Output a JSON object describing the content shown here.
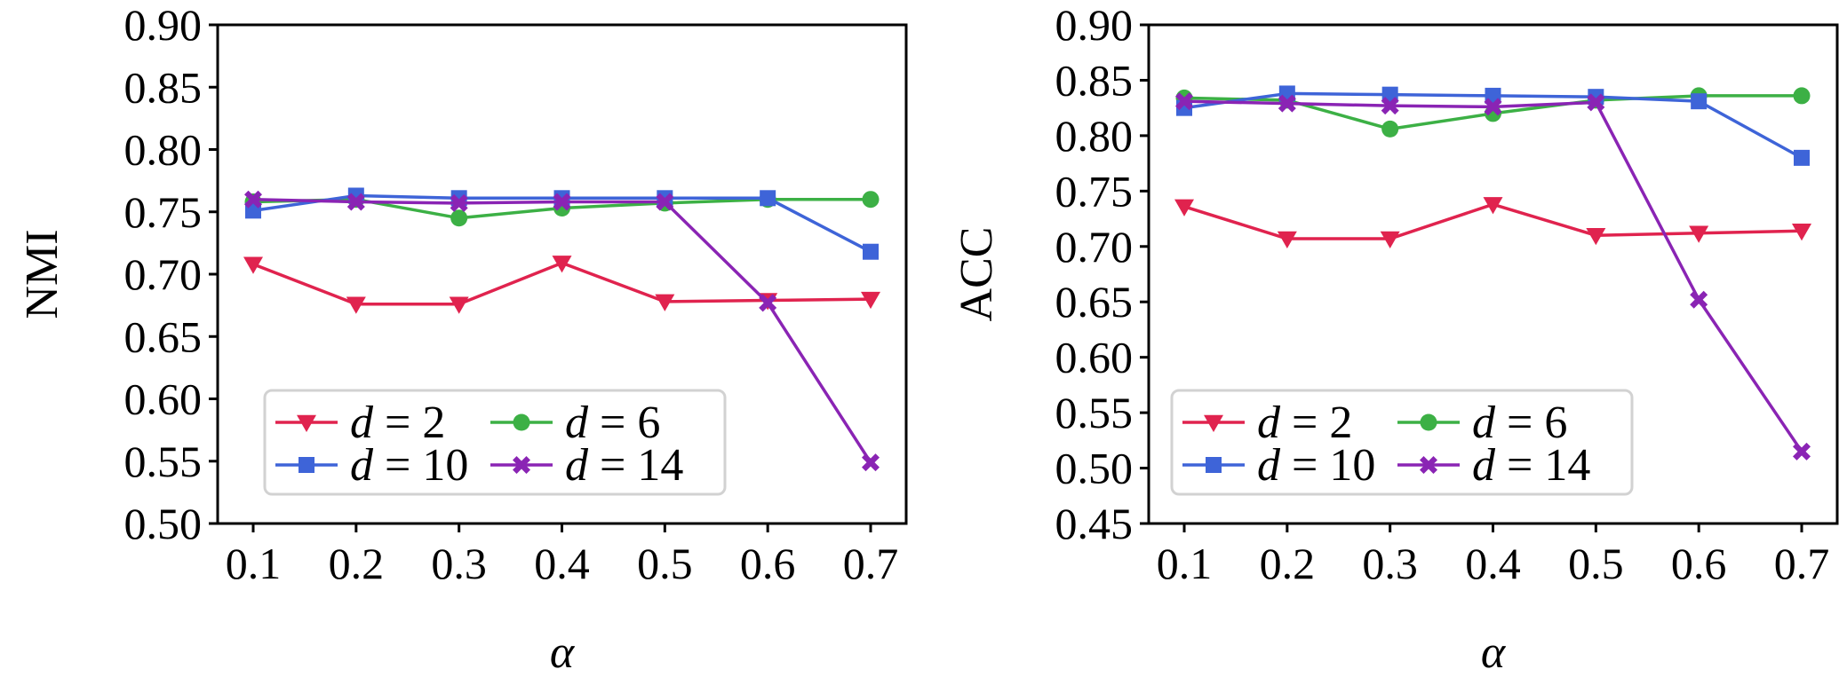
{
  "chart_data": [
    {
      "type": "line",
      "id": "nmi",
      "xlabel": "α",
      "ylabel": "NMI",
      "x": [
        0.1,
        0.2,
        0.3,
        0.4,
        0.5,
        0.6,
        0.7
      ],
      "x_tick_labels": [
        "0.1",
        "0.2",
        "0.3",
        "0.4",
        "0.5",
        "0.6",
        "0.7"
      ],
      "ylim": [
        0.5,
        0.9
      ],
      "y_ticks": [
        0.5,
        0.55,
        0.6,
        0.65,
        0.7,
        0.75,
        0.8,
        0.85,
        0.9
      ],
      "y_tick_labels": [
        "0.50",
        "0.55",
        "0.60",
        "0.65",
        "0.70",
        "0.75",
        "0.80",
        "0.85",
        "0.90"
      ],
      "grid": false,
      "legend_position": "bottom-left",
      "series": [
        {
          "name": "d = 2",
          "var": "d",
          "eq": " = 2",
          "color": "#e0234e",
          "marker": "triangle-down",
          "values": [
            0.708,
            0.676,
            0.676,
            0.709,
            0.678,
            0.679,
            0.68
          ]
        },
        {
          "name": "d = 6",
          "var": "d",
          "eq": " = 6",
          "color": "#3cb045",
          "marker": "circle",
          "values": [
            0.758,
            0.76,
            0.745,
            0.753,
            0.757,
            0.76,
            0.76
          ]
        },
        {
          "name": "d = 10",
          "var": "d",
          "eq": " = 10",
          "color": "#3e64d8",
          "marker": "square",
          "values": [
            0.751,
            0.763,
            0.761,
            0.761,
            0.761,
            0.761,
            0.718
          ]
        },
        {
          "name": "d = 14",
          "var": "d",
          "eq": " = 14",
          "color": "#8a24b4",
          "marker": "x-diamond",
          "values": [
            0.76,
            0.758,
            0.757,
            0.758,
            0.758,
            0.677,
            0.549
          ]
        }
      ]
    },
    {
      "type": "line",
      "id": "acc",
      "xlabel": "α",
      "ylabel": "ACC",
      "x": [
        0.1,
        0.2,
        0.3,
        0.4,
        0.5,
        0.6,
        0.7
      ],
      "x_tick_labels": [
        "0.1",
        "0.2",
        "0.3",
        "0.4",
        "0.5",
        "0.6",
        "0.7"
      ],
      "ylim": [
        0.45,
        0.9
      ],
      "y_ticks": [
        0.45,
        0.5,
        0.55,
        0.6,
        0.65,
        0.7,
        0.75,
        0.8,
        0.85,
        0.9
      ],
      "y_tick_labels": [
        "0.45",
        "0.50",
        "0.55",
        "0.60",
        "0.65",
        "0.70",
        "0.75",
        "0.80",
        "0.85",
        "0.90"
      ],
      "grid": false,
      "legend_position": "bottom-left",
      "series": [
        {
          "name": "d = 2",
          "var": "d",
          "eq": " = 2",
          "color": "#e0234e",
          "marker": "triangle-down",
          "values": [
            0.736,
            0.707,
            0.707,
            0.738,
            0.71,
            0.712,
            0.714
          ]
        },
        {
          "name": "d = 6",
          "var": "d",
          "eq": " = 6",
          "color": "#3cb045",
          "marker": "circle",
          "values": [
            0.834,
            0.832,
            0.806,
            0.82,
            0.832,
            0.836,
            0.836
          ]
        },
        {
          "name": "d = 10",
          "var": "d",
          "eq": " = 10",
          "color": "#3e64d8",
          "marker": "square",
          "values": [
            0.825,
            0.838,
            0.837,
            0.836,
            0.835,
            0.831,
            0.78
          ]
        },
        {
          "name": "d = 14",
          "var": "d",
          "eq": " = 14",
          "color": "#8a24b4",
          "marker": "x-diamond",
          "values": [
            0.831,
            0.829,
            0.827,
            0.826,
            0.83,
            0.652,
            0.515
          ]
        }
      ]
    }
  ]
}
